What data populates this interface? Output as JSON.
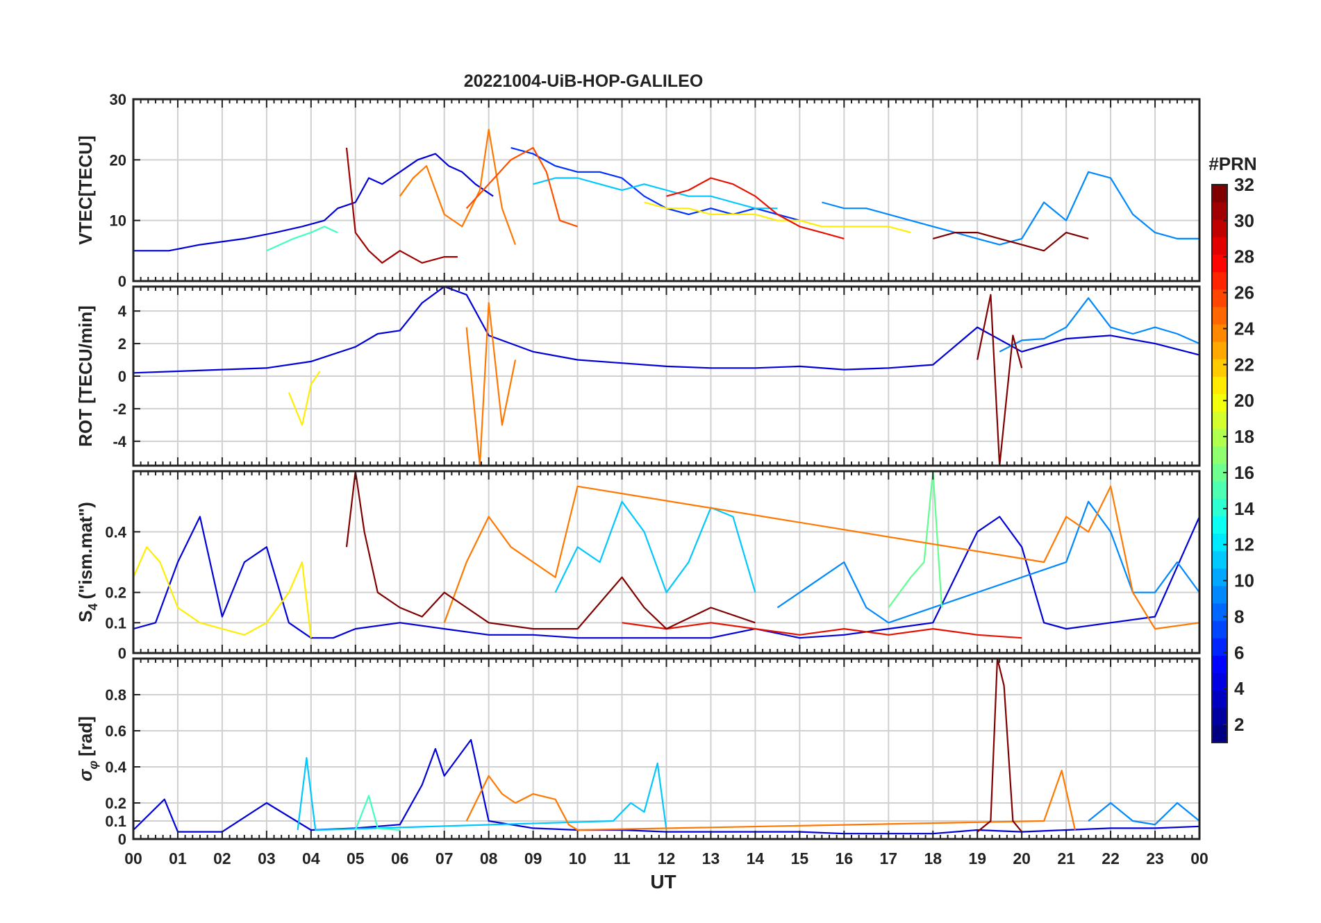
{
  "figure": {
    "title": "20221004-UiB-HOP-GALILEO",
    "xlabel": "UT",
    "x_ticks": [
      "00",
      "01",
      "02",
      "03",
      "04",
      "05",
      "06",
      "07",
      "08",
      "09",
      "10",
      "11",
      "12",
      "13",
      "14",
      "15",
      "16",
      "17",
      "18",
      "19",
      "20",
      "21",
      "22",
      "23",
      "00"
    ]
  },
  "colorbar": {
    "title": "#PRN",
    "colormap": "jet",
    "range": [
      1,
      32
    ],
    "tick_labels": [
      "2",
      "4",
      "6",
      "8",
      "10",
      "12",
      "14",
      "16",
      "18",
      "20",
      "22",
      "24",
      "26",
      "28",
      "30",
      "32"
    ],
    "colors": [
      "#00008f",
      "#0000ff",
      "#00ffff",
      "#ffff00",
      "#ff0000",
      "#800000"
    ]
  },
  "chart_data": [
    {
      "type": "line",
      "panel": "VTEC",
      "ylabel": "VTEC[TECU]",
      "ylim": [
        0,
        30
      ],
      "y_tick_labels": [
        "0",
        "10",
        "20",
        "30"
      ],
      "x_range_hours": [
        0,
        24
      ],
      "grid": true,
      "series": [
        {
          "prn": 3,
          "color": "#0000d8",
          "x": [
            0.0,
            0.8,
            1.5,
            2.5,
            3.2,
            3.8,
            4.3,
            4.6,
            5.0,
            5.3,
            5.6,
            6.0,
            6.4,
            6.8,
            7.1,
            7.4,
            7.7,
            8.1
          ],
          "y": [
            5,
            5,
            6,
            7,
            8,
            9,
            10,
            12,
            13,
            17,
            16,
            18,
            20,
            21,
            19,
            18,
            16,
            14
          ]
        },
        {
          "prn": 5,
          "color": "#0030ff",
          "x": [
            8.5,
            9.0,
            9.5,
            10.0,
            10.5,
            11.0,
            11.5,
            12.0,
            12.5,
            13.0,
            13.5,
            14.0,
            14.5,
            15.0
          ],
          "y": [
            22,
            21,
            19,
            18,
            18,
            17,
            14,
            12,
            11,
            12,
            11,
            12,
            11,
            10
          ]
        },
        {
          "prn": 9,
          "color": "#0088ff",
          "x": [
            15.5,
            16.0,
            16.5,
            17.0,
            17.5,
            18.0,
            18.5,
            19.0,
            19.5,
            20.0,
            20.5,
            21.0,
            21.5,
            22.0,
            22.5,
            23.0,
            23.5,
            24.0
          ],
          "y": [
            13,
            12,
            12,
            11,
            10,
            9,
            8,
            7,
            6,
            7,
            13,
            10,
            18,
            17,
            11,
            8,
            7,
            7
          ]
        },
        {
          "prn": 11,
          "color": "#00c8ff",
          "x": [
            9.0,
            9.5,
            10.0,
            10.5,
            11.0,
            11.5,
            12.0,
            12.5,
            13.0,
            13.5,
            14.0,
            14.5
          ],
          "y": [
            16,
            17,
            17,
            16,
            15,
            16,
            15,
            14,
            14,
            13,
            12,
            12
          ]
        },
        {
          "prn": 15,
          "color": "#40ffc0",
          "x": [
            3.0,
            3.3,
            3.6,
            4.0,
            4.3,
            4.6
          ],
          "y": [
            5,
            6,
            7,
            8,
            9,
            8
          ]
        },
        {
          "prn": 19,
          "color": "#ffee00",
          "x": [
            11.5,
            12.0,
            12.5,
            13.0,
            13.5,
            14.0,
            14.5,
            15.0,
            15.5,
            16.0,
            16.5,
            17.0,
            17.5
          ],
          "y": [
            13,
            12,
            12,
            11,
            11,
            11,
            10,
            10,
            9,
            9,
            9,
            9,
            8
          ]
        },
        {
          "prn": 23,
          "color": "#ff7800",
          "x": [
            6.0,
            6.3,
            6.6,
            7.0,
            7.4,
            7.8,
            8.0,
            8.3,
            8.6
          ],
          "y": [
            14,
            17,
            19,
            11,
            9,
            15,
            25,
            12,
            6
          ]
        },
        {
          "prn": 25,
          "color": "#ff5000",
          "x": [
            7.5,
            8.0,
            8.5,
            9.0,
            9.3,
            9.6,
            10.0
          ],
          "y": [
            12,
            16,
            20,
            22,
            18,
            10,
            9
          ]
        },
        {
          "prn": 28,
          "color": "#e81000",
          "x": [
            12.0,
            12.5,
            13.0,
            13.5,
            14.0,
            14.5,
            15.0,
            15.5,
            16.0
          ],
          "y": [
            14,
            15,
            17,
            16,
            14,
            11,
            9,
            8,
            7
          ]
        },
        {
          "prn": 31,
          "color": "#a00000",
          "x": [
            4.8,
            5.0,
            5.3,
            5.6,
            6.0,
            6.5,
            7.0,
            7.3
          ],
          "y": [
            22,
            8,
            5,
            3,
            5,
            3,
            4,
            4
          ]
        },
        {
          "prn": 32,
          "color": "#800000",
          "x": [
            18.0,
            18.5,
            19.0,
            19.5,
            20.0,
            20.5,
            21.0,
            21.5
          ],
          "y": [
            7,
            8,
            8,
            7,
            6,
            5,
            8,
            7
          ]
        }
      ]
    },
    {
      "type": "line",
      "panel": "ROT",
      "ylabel": "ROT [TECU/min]",
      "ylim": [
        -5.5,
        5.5
      ],
      "y_tick_labels": [
        "-4",
        "-2",
        "0",
        "2",
        "4"
      ],
      "x_range_hours": [
        0,
        24
      ],
      "grid": true,
      "series": [
        {
          "prn": 3,
          "color": "#0000d8",
          "x": [
            0,
            1,
            2,
            3,
            4,
            5,
            5.5,
            6,
            6.5,
            7,
            7.5,
            8,
            9,
            10,
            11,
            12,
            13,
            14,
            15,
            16,
            17,
            18,
            19,
            20,
            21,
            22,
            23,
            24
          ],
          "y": [
            0.2,
            0.3,
            0.4,
            0.5,
            0.9,
            1.8,
            2.6,
            2.8,
            4.5,
            5.5,
            5.0,
            2.5,
            1.5,
            1.0,
            0.8,
            0.6,
            0.5,
            0.5,
            0.6,
            0.4,
            0.5,
            0.7,
            3.0,
            1.5,
            2.3,
            2.5,
            2.0,
            1.3
          ]
        },
        {
          "prn": 9,
          "color": "#0088ff",
          "x": [
            19.5,
            20,
            20.5,
            21,
            21.5,
            22,
            22.5,
            23,
            23.5,
            24
          ],
          "y": [
            1.5,
            2.2,
            2.3,
            3.0,
            4.8,
            3.0,
            2.6,
            3.0,
            2.6,
            2.0
          ]
        },
        {
          "prn": 19,
          "color": "#ffee00",
          "x": [
            3.5,
            3.8,
            4.0,
            4.2
          ],
          "y": [
            -1.0,
            -3.0,
            -0.5,
            0.3
          ]
        },
        {
          "prn": 23,
          "color": "#ff7800",
          "x": [
            7.5,
            7.8,
            8.0,
            8.3,
            8.6
          ],
          "y": [
            3.0,
            -5.5,
            4.5,
            -3.0,
            1.0
          ]
        },
        {
          "prn": 32,
          "color": "#800000",
          "x": [
            19.0,
            19.3,
            19.5,
            19.8,
            20.0
          ],
          "y": [
            1.0,
            5.0,
            -5.5,
            2.5,
            0.5
          ]
        }
      ]
    },
    {
      "type": "line",
      "panel": "S4",
      "ylabel": "S4 (\"ism.mat\")",
      "ylabel_main": "S",
      "ylabel_sub": "4",
      "ylabel_rest": "(\"ism.mat\")",
      "ylim": [
        0,
        0.6
      ],
      "y_tick_labels": [
        "0",
        "0.1",
        "0.2",
        "0.4"
      ],
      "x_range_hours": [
        0,
        24
      ],
      "grid": true,
      "series": [
        {
          "prn": 3,
          "color": "#0000d8",
          "x": [
            0,
            0.5,
            1.0,
            1.5,
            2.0,
            2.5,
            3.0,
            3.5,
            4.0,
            4.5,
            5.0,
            6.0,
            7.0,
            8.0,
            9.0,
            10.0,
            11.0,
            12.0,
            13.0,
            14.0,
            15.0,
            16.0,
            17.0,
            18.0,
            19.0,
            19.5,
            20.0,
            20.5,
            21.0,
            22.0,
            23.0,
            24.0
          ],
          "y": [
            0.08,
            0.1,
            0.3,
            0.45,
            0.12,
            0.3,
            0.35,
            0.1,
            0.05,
            0.05,
            0.08,
            0.1,
            0.08,
            0.06,
            0.06,
            0.05,
            0.05,
            0.05,
            0.05,
            0.08,
            0.05,
            0.06,
            0.08,
            0.1,
            0.4,
            0.45,
            0.35,
            0.1,
            0.08,
            0.1,
            0.12,
            0.45
          ]
        },
        {
          "prn": 9,
          "color": "#0088ff",
          "x": [
            14.5,
            15.0,
            15.5,
            16.0,
            16.5,
            17.0,
            21.0,
            21.5,
            22.0,
            22.5,
            23.0,
            23.5,
            24.0
          ],
          "y": [
            0.15,
            0.2,
            0.25,
            0.3,
            0.15,
            0.1,
            0.3,
            0.5,
            0.4,
            0.2,
            0.2,
            0.3,
            0.2
          ]
        },
        {
          "prn": 11,
          "color": "#00c8ff",
          "x": [
            9.5,
            10.0,
            10.5,
            11.0,
            11.5,
            12.0,
            12.5,
            13.0,
            13.5,
            14.0
          ],
          "y": [
            0.2,
            0.35,
            0.3,
            0.5,
            0.4,
            0.2,
            0.3,
            0.48,
            0.45,
            0.2
          ]
        },
        {
          "prn": 17,
          "color": "#60ff90",
          "x": [
            17.0,
            17.5,
            17.8,
            18.0,
            18.2
          ],
          "y": [
            0.15,
            0.25,
            0.3,
            0.6,
            0.15
          ]
        },
        {
          "prn": 19,
          "color": "#ffee00",
          "x": [
            0,
            0.3,
            0.6,
            1.0,
            1.5,
            2.0,
            2.5,
            3.0,
            3.5,
            3.8,
            4.0
          ],
          "y": [
            0.25,
            0.35,
            0.3,
            0.15,
            0.1,
            0.08,
            0.06,
            0.1,
            0.2,
            0.3,
            0.05
          ]
        },
        {
          "prn": 23,
          "color": "#ff7800",
          "x": [
            7.0,
            7.5,
            8.0,
            8.5,
            9.0,
            9.5,
            10.0,
            20.5,
            21.0,
            21.5,
            22.0,
            22.5,
            23.0,
            24.0
          ],
          "y": [
            0.1,
            0.3,
            0.45,
            0.35,
            0.3,
            0.25,
            0.55,
            0.3,
            0.45,
            0.4,
            0.55,
            0.2,
            0.08,
            0.1
          ]
        },
        {
          "prn": 28,
          "color": "#e81000",
          "x": [
            11.0,
            12.0,
            13.0,
            14.0,
            15.0,
            16.0,
            17.0,
            18.0,
            19.0,
            20.0
          ],
          "y": [
            0.1,
            0.08,
            0.1,
            0.08,
            0.06,
            0.08,
            0.06,
            0.08,
            0.06,
            0.05
          ]
        },
        {
          "prn": 32,
          "color": "#800000",
          "x": [
            4.8,
            5.0,
            5.2,
            5.5,
            6.0,
            6.5,
            7.0,
            7.5,
            8.0,
            9.0,
            10.0,
            11.0,
            11.5,
            12.0,
            13.0,
            14.0
          ],
          "y": [
            0.35,
            0.6,
            0.4,
            0.2,
            0.15,
            0.12,
            0.2,
            0.15,
            0.1,
            0.08,
            0.08,
            0.25,
            0.15,
            0.08,
            0.15,
            0.1
          ]
        }
      ]
    },
    {
      "type": "line",
      "panel": "SigmaPhi",
      "ylabel": "σφ[rad]",
      "ylabel_main": "σ",
      "ylabel_sub": "φ",
      "ylabel_rest": "[rad]",
      "ylim": [
        0,
        1.0
      ],
      "y_tick_labels": [
        "0",
        "0.1",
        "0.2",
        "0.4",
        "0.6",
        "0.8"
      ],
      "x_range_hours": [
        0,
        24
      ],
      "grid": true,
      "series": [
        {
          "prn": 3,
          "color": "#0000d8",
          "x": [
            0,
            0.7,
            1.0,
            2.0,
            3.0,
            4.0,
            5.0,
            6.0,
            6.5,
            6.8,
            7.0,
            7.3,
            7.6,
            8.0,
            9.0,
            10.0,
            11.0,
            12.0,
            13.0,
            14.0,
            15.0,
            16.0,
            17.0,
            18.0,
            19.0,
            20.0,
            21.0,
            22.0,
            23.0,
            24.0
          ],
          "y": [
            0.05,
            0.22,
            0.04,
            0.04,
            0.2,
            0.05,
            0.06,
            0.08,
            0.3,
            0.5,
            0.35,
            0.45,
            0.55,
            0.1,
            0.06,
            0.05,
            0.05,
            0.04,
            0.04,
            0.04,
            0.04,
            0.03,
            0.03,
            0.03,
            0.05,
            0.04,
            0.05,
            0.06,
            0.06,
            0.07
          ]
        },
        {
          "prn": 9,
          "color": "#0088ff",
          "x": [
            21.5,
            22.0,
            22.5,
            23.0,
            23.5,
            24.0
          ],
          "y": [
            0.1,
            0.2,
            0.1,
            0.08,
            0.2,
            0.1
          ]
        },
        {
          "prn": 11,
          "color": "#00c8ff",
          "x": [
            3.7,
            3.9,
            4.1,
            10.8,
            11.2,
            11.5,
            11.8,
            12.0
          ],
          "y": [
            0.05,
            0.45,
            0.05,
            0.1,
            0.2,
            0.15,
            0.42,
            0.05
          ]
        },
        {
          "prn": 15,
          "color": "#40ffc0",
          "x": [
            5.0,
            5.3,
            5.5,
            6.0
          ],
          "y": [
            0.05,
            0.24,
            0.06,
            0.05
          ]
        },
        {
          "prn": 23,
          "color": "#ff7800",
          "x": [
            7.5,
            8.0,
            8.3,
            8.6,
            9.0,
            9.5,
            9.8,
            10.0,
            20.5,
            20.9,
            21.2
          ],
          "y": [
            0.1,
            0.35,
            0.25,
            0.2,
            0.25,
            0.22,
            0.08,
            0.05,
            0.1,
            0.38,
            0.05
          ]
        },
        {
          "prn": 32,
          "color": "#800000",
          "x": [
            19.0,
            19.3,
            19.45,
            19.6,
            19.8,
            20.0
          ],
          "y": [
            0.04,
            0.1,
            1.0,
            0.85,
            0.1,
            0.04
          ]
        }
      ]
    }
  ]
}
